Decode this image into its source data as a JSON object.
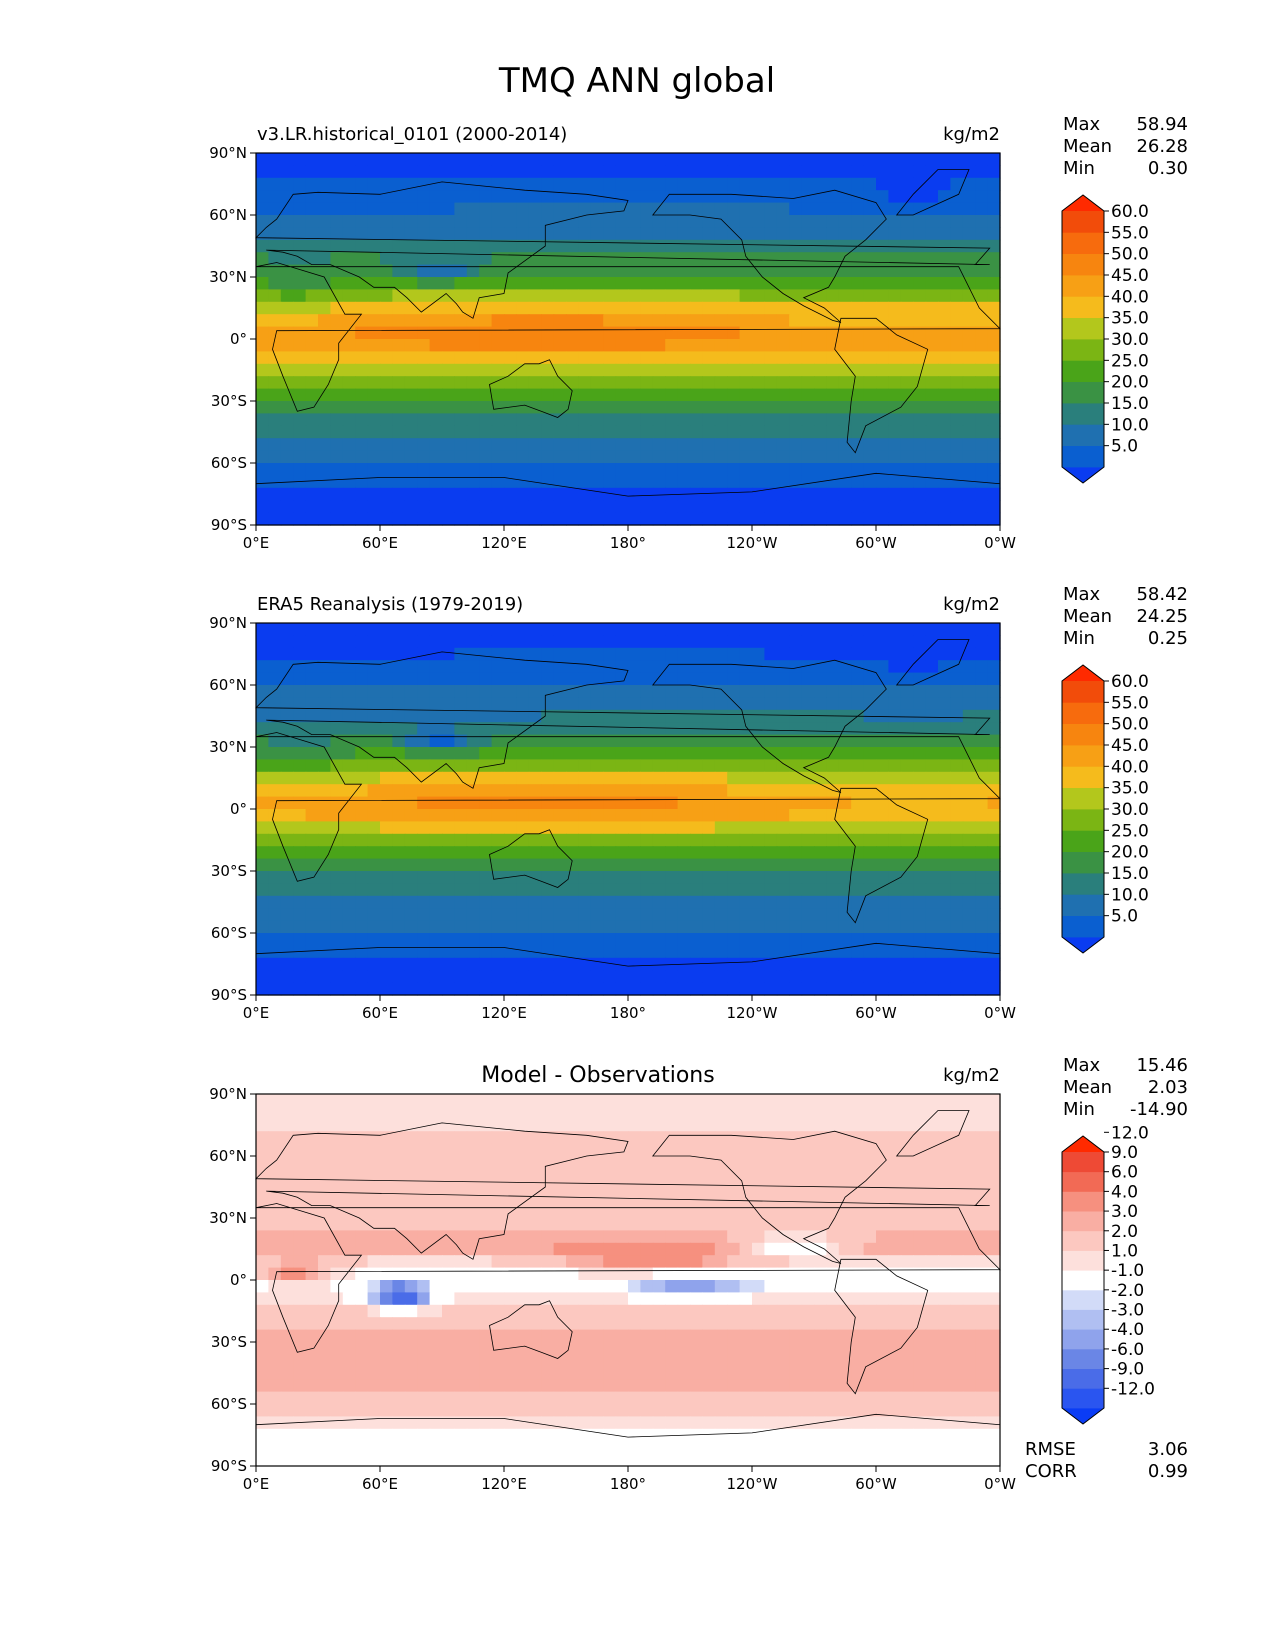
{
  "figure_title": "TMQ ANN global",
  "chart_data": [
    {
      "type": "heatmap",
      "title": "v3.LR.historical_0101 (2000-2014)",
      "units": "kg/m2",
      "x_ticks": [
        "0°E",
        "60°E",
        "120°E",
        "180°",
        "120°W",
        "60°W",
        "0°W"
      ],
      "y_ticks": [
        "90°N",
        "60°N",
        "30°N",
        "0°",
        "30°S",
        "60°S",
        "90°S"
      ],
      "xlim": [
        0,
        360
      ],
      "ylim": [
        -90,
        90
      ],
      "stats": {
        "labels": [
          "Max",
          "Mean",
          "Min"
        ],
        "values": [
          "58.94",
          "26.28",
          "0.30"
        ]
      },
      "colorbar": {
        "levels": [
          0,
          5,
          10,
          15,
          20,
          25,
          30,
          35,
          40,
          45,
          50,
          55,
          60,
          65
        ],
        "tick_labels": [
          "5.0",
          "10.0",
          "15.0",
          "20.0",
          "25.0",
          "30.0",
          "35.0",
          "40.0",
          "45.0",
          "50.0",
          "55.0",
          "60.0"
        ],
        "colors": [
          "#0a3cf0",
          "#0a5fd0",
          "#1f70b0",
          "#2a7f7c",
          "#3a9244",
          "#4aa419",
          "#7bb514",
          "#b3c71c",
          "#f5bb1c",
          "#f7a015",
          "#f7850f",
          "#f76b0d",
          "#f24c0a",
          "#ff2a00"
        ]
      },
      "field": {
        "zonal_profile_lat": [
          -90,
          -75,
          -60,
          -45,
          -30,
          -15,
          0,
          15,
          30,
          45,
          60,
          75,
          90
        ],
        "zonal_profile_value": [
          2,
          4,
          10,
          16,
          24,
          38,
          48,
          40,
          26,
          17,
          11,
          6,
          3
        ]
      }
    },
    {
      "type": "heatmap",
      "title": "ERA5 Reanalysis (1979-2019)",
      "units": "kg/m2",
      "x_ticks": [
        "0°E",
        "60°E",
        "120°E",
        "180°",
        "120°W",
        "60°W",
        "0°W"
      ],
      "y_ticks": [
        "90°N",
        "60°N",
        "30°N",
        "0°",
        "30°S",
        "60°S",
        "90°S"
      ],
      "xlim": [
        0,
        360
      ],
      "ylim": [
        -90,
        90
      ],
      "stats": {
        "labels": [
          "Max",
          "Mean",
          "Min"
        ],
        "values": [
          "58.42",
          "24.25",
          "0.25"
        ]
      },
      "colorbar": {
        "levels": [
          0,
          5,
          10,
          15,
          20,
          25,
          30,
          35,
          40,
          45,
          50,
          55,
          60,
          65
        ],
        "tick_labels": [
          "5.0",
          "10.0",
          "15.0",
          "20.0",
          "25.0",
          "30.0",
          "35.0",
          "40.0",
          "45.0",
          "50.0",
          "55.0",
          "60.0"
        ],
        "colors": [
          "#0a3cf0",
          "#0a5fd0",
          "#1f70b0",
          "#2a7f7c",
          "#3a9244",
          "#4aa419",
          "#7bb514",
          "#b3c71c",
          "#f5bb1c",
          "#f7a015",
          "#f7850f",
          "#f76b0d",
          "#f24c0a",
          "#ff2a00"
        ]
      },
      "field": {
        "zonal_profile_lat": [
          -90,
          -75,
          -60,
          -45,
          -30,
          -15,
          0,
          15,
          30,
          45,
          60,
          75,
          90
        ],
        "zonal_profile_value": [
          2,
          4,
          9,
          14,
          21,
          34,
          46,
          38,
          24,
          15,
          10,
          5,
          3
        ]
      }
    },
    {
      "type": "heatmap",
      "title": "Model - Observations",
      "units": "kg/m2",
      "x_ticks": [
        "0°E",
        "60°E",
        "120°E",
        "180°",
        "120°W",
        "60°W",
        "0°W"
      ],
      "y_ticks": [
        "90°N",
        "60°N",
        "30°N",
        "0°",
        "30°S",
        "60°S",
        "90°S"
      ],
      "xlim": [
        0,
        360
      ],
      "ylim": [
        -90,
        90
      ],
      "stats": {
        "labels": [
          "Max",
          "Mean",
          "Min"
        ],
        "values": [
          "15.46",
          "2.03",
          "-14.90"
        ]
      },
      "metrics": {
        "labels": [
          "RMSE",
          "CORR"
        ],
        "values": [
          "3.06",
          "0.99"
        ]
      },
      "colorbar": {
        "levels": [
          -15,
          -12,
          -9,
          -6,
          -4,
          -3,
          -2,
          -1,
          1,
          2,
          3,
          4,
          6,
          9,
          12,
          15
        ],
        "tick_labels": [
          "-12.0",
          "-9.0",
          "-6.0",
          "-4.0",
          "-3.0",
          "-2.0",
          "-1.0",
          "1.0",
          "2.0",
          "3.0",
          "4.0",
          "6.0",
          "9.0",
          "12.0"
        ],
        "colors": [
          "#0a3cf5",
          "#2a55f0",
          "#4a6ce8",
          "#6a86e6",
          "#8fa3ec",
          "#b0bff2",
          "#d2dbf8",
          "#ffffff",
          "#fde0dc",
          "#fcc8c0",
          "#f9aea3",
          "#f6907f",
          "#f26a55",
          "#ee4a35",
          "#ff2a00"
        ]
      },
      "field": {
        "zonal_profile_lat": [
          -90,
          -75,
          -60,
          -45,
          -30,
          -15,
          0,
          15,
          30,
          45,
          60,
          75,
          90
        ],
        "zonal_profile_value": [
          0.3,
          0.5,
          2.5,
          3.5,
          3.2,
          2.5,
          -0.5,
          3.5,
          2.5,
          2.2,
          2.8,
          1.8,
          1.0
        ]
      }
    }
  ]
}
